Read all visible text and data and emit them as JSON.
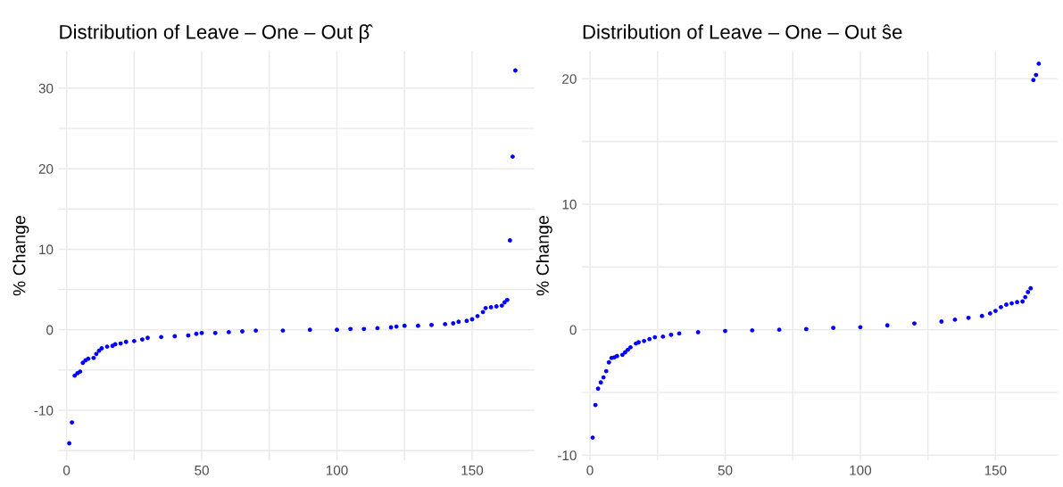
{
  "chart_data": [
    {
      "type": "scatter",
      "title": "Distribution of Leave – One – Out β̂",
      "ylabel": "% Change",
      "marker": "circle",
      "grid": true,
      "xlim": [
        -3,
        173
      ],
      "ylim": [
        -16.2,
        34.6
      ],
      "xticks": [
        0,
        {
          "value": 25,
          "label": null
        },
        50,
        {
          "value": 75,
          "label": null
        },
        100,
        {
          "value": 125,
          "label": null
        },
        150
      ],
      "yticks": [
        {
          "value": -15,
          "label": null
        },
        -10,
        {
          "value": -5,
          "label": null
        },
        0,
        {
          "value": 5,
          "label": null
        },
        10,
        {
          "value": 15,
          "label": null
        },
        20,
        {
          "value": 25,
          "label": null
        },
        30
      ],
      "series": [
        {
          "color": "#0000ff",
          "x": [
            1,
            2,
            3,
            4,
            5,
            6,
            7,
            8,
            10,
            11,
            12,
            13,
            15,
            17,
            18,
            20,
            22,
            25,
            28,
            30,
            35,
            40,
            45,
            48,
            50,
            55,
            60,
            65,
            70,
            80,
            90,
            100,
            105,
            110,
            115,
            120,
            122,
            125,
            130,
            135,
            140,
            143,
            145,
            148,
            150,
            152,
            154,
            155,
            157,
            159,
            161,
            162,
            163,
            164,
            165,
            166
          ],
          "values": [
            -14.1,
            -11.5,
            -5.7,
            -5.4,
            -5.2,
            -4.1,
            -3.8,
            -3.6,
            -3.5,
            -3.0,
            -2.6,
            -2.3,
            -2.1,
            -2.0,
            -1.8,
            -1.7,
            -1.5,
            -1.4,
            -1.2,
            -1.0,
            -0.9,
            -0.8,
            -0.7,
            -0.5,
            -0.4,
            -0.4,
            -0.3,
            -0.2,
            -0.1,
            -0.1,
            0.0,
            0.0,
            0.1,
            0.1,
            0.2,
            0.3,
            0.4,
            0.5,
            0.5,
            0.6,
            0.7,
            0.8,
            1.0,
            1.1,
            1.3,
            1.7,
            2.2,
            2.7,
            2.8,
            2.9,
            3.0,
            3.4,
            3.7,
            11.1,
            21.5,
            32.2
          ]
        }
      ]
    },
    {
      "type": "scatter",
      "title": "Distribution of Leave – One – Out ŝe",
      "ylabel": "% Change",
      "marker": "circle",
      "grid": true,
      "xlim": [
        -3,
        173
      ],
      "ylim": [
        -10.4,
        22.2
      ],
      "xticks": [
        0,
        {
          "value": 25,
          "label": null
        },
        50,
        {
          "value": 75,
          "label": null
        },
        100,
        {
          "value": 125,
          "label": null
        },
        150
      ],
      "yticks": [
        -10,
        {
          "value": -5,
          "label": null
        },
        0,
        {
          "value": 5,
          "label": null
        },
        10,
        {
          "value": 15,
          "label": null
        },
        20
      ],
      "series": [
        {
          "color": "#0000ff",
          "x": [
            1,
            2,
            3,
            4,
            5,
            6,
            7,
            8,
            9,
            10,
            12,
            13,
            14,
            15,
            17,
            18,
            20,
            22,
            24,
            27,
            30,
            33,
            40,
            50,
            60,
            70,
            80,
            90,
            100,
            110,
            120,
            130,
            135,
            140,
            145,
            148,
            150,
            152,
            154,
            156,
            158,
            160,
            161,
            162,
            163,
            164,
            165,
            166
          ],
          "values": [
            -8.6,
            -6.0,
            -4.7,
            -4.2,
            -3.8,
            -3.3,
            -2.6,
            -2.25,
            -2.2,
            -2.1,
            -2.0,
            -1.8,
            -1.6,
            -1.4,
            -1.1,
            -1.0,
            -0.9,
            -0.75,
            -0.6,
            -0.55,
            -0.4,
            -0.3,
            -0.2,
            -0.1,
            -0.05,
            0.0,
            0.05,
            0.15,
            0.2,
            0.35,
            0.5,
            0.65,
            0.8,
            0.95,
            1.1,
            1.3,
            1.5,
            1.8,
            2.0,
            2.1,
            2.2,
            2.25,
            2.6,
            3.0,
            3.3,
            19.9,
            20.3,
            21.2
          ]
        }
      ]
    }
  ]
}
